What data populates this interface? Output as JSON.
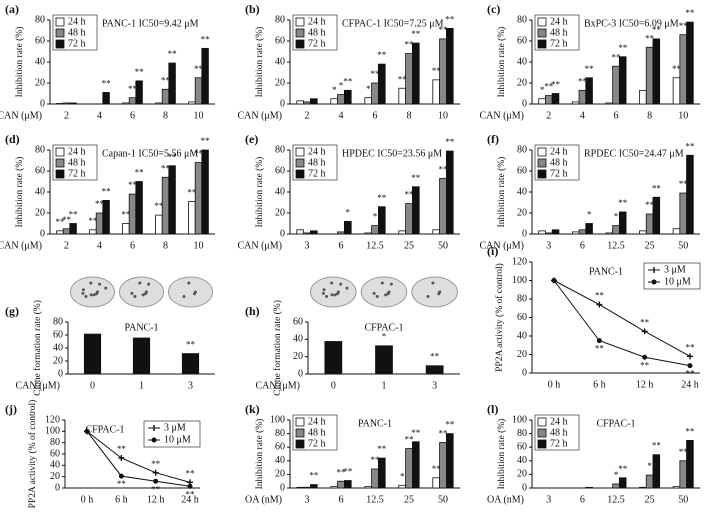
{
  "chart_data": [
    {
      "type": "bar",
      "panel": "(a)",
      "title": "PANC-1 IC50=9.42 μM",
      "xlabel": "CAN (μM)",
      "ylabel": "Inhibition rate (%)",
      "categories": [
        "2",
        "4",
        "6",
        "8",
        "10"
      ],
      "ylim": [
        0,
        80
      ],
      "yticks": [
        0,
        20,
        40,
        60,
        80
      ],
      "series": [
        {
          "name": "24 h",
          "color": "#ffffff",
          "values": [
            0.5,
            0,
            1,
            1,
            2
          ],
          "sig": [
            null,
            null,
            null,
            null,
            null
          ]
        },
        {
          "name": "48 h",
          "color": "#888888",
          "values": [
            1,
            0,
            6,
            14,
            25
          ],
          "sig": [
            null,
            null,
            "**",
            "**",
            "**"
          ]
        },
        {
          "name": "72 h",
          "color": "#111111",
          "values": [
            1,
            11,
            22,
            39,
            53
          ],
          "sig": [
            null,
            "**",
            "**",
            "**",
            "**"
          ]
        }
      ]
    },
    {
      "type": "bar",
      "panel": "(b)",
      "title": "CFPAC-1 IC50=7.25 μM",
      "xlabel": "CAN (μM)",
      "ylabel": "Inhibition rate (%)",
      "categories": [
        "2",
        "4",
        "6",
        "8",
        "10"
      ],
      "ylim": [
        0,
        80
      ],
      "yticks": [
        0,
        20,
        40,
        60,
        80
      ],
      "series": [
        {
          "name": "24 h",
          "color": "#ffffff",
          "values": [
            3,
            5,
            6,
            15,
            23
          ],
          "sig": [
            null,
            "*",
            "*",
            "**",
            "**"
          ]
        },
        {
          "name": "48 h",
          "color": "#888888",
          "values": [
            2,
            9,
            20,
            48,
            62
          ],
          "sig": [
            null,
            "*",
            "**",
            "**",
            "**"
          ]
        },
        {
          "name": "72 h",
          "color": "#111111",
          "values": [
            5,
            13,
            38,
            58,
            72
          ],
          "sig": [
            null,
            "**",
            "**",
            "**",
            "**"
          ]
        }
      ]
    },
    {
      "type": "bar",
      "panel": "(c)",
      "title": "BxPC-3 IC50=6.09 μM",
      "xlabel": "CAN (μM)",
      "ylabel": "Inhibition rate (%)",
      "categories": [
        "2",
        "4",
        "6",
        "8",
        "10"
      ],
      "ylim": [
        0,
        80
      ],
      "yticks": [
        0,
        20,
        40,
        60,
        80
      ],
      "series": [
        {
          "name": "24 h",
          "color": "#ffffff",
          "values": [
            5,
            2,
            1,
            13,
            25
          ],
          "sig": [
            "*",
            null,
            null,
            null,
            "**"
          ]
        },
        {
          "name": "48 h",
          "color": "#888888",
          "values": [
            8,
            13,
            36,
            54,
            66
          ],
          "sig": [
            "**",
            "**",
            "**",
            "**",
            "**"
          ]
        },
        {
          "name": "72 h",
          "color": "#111111",
          "values": [
            10,
            25,
            45,
            62,
            78
          ],
          "sig": [
            "**",
            "**",
            "**",
            "**",
            "**"
          ]
        }
      ]
    },
    {
      "type": "bar",
      "panel": "(d)",
      "title": "Capan-1 IC50=5.56 μM",
      "xlabel": "CAN (μM)",
      "ylabel": "Inhibition rate (%)",
      "categories": [
        "2",
        "4",
        "6",
        "8",
        "10"
      ],
      "ylim": [
        0,
        80
      ],
      "yticks": [
        0,
        20,
        40,
        60,
        80
      ],
      "series": [
        {
          "name": "24 h",
          "color": "#ffffff",
          "values": [
            3,
            4,
            10,
            18,
            31
          ],
          "sig": [
            "**",
            "**",
            "**",
            "**",
            "**"
          ]
        },
        {
          "name": "48 h",
          "color": "#888888",
          "values": [
            5,
            20,
            38,
            54,
            68
          ],
          "sig": [
            "**",
            "**",
            "**",
            "**",
            "**"
          ]
        },
        {
          "name": "72 h",
          "color": "#111111",
          "values": [
            10,
            32,
            50,
            65,
            80
          ],
          "sig": [
            "**",
            "**",
            "**",
            "**",
            "**"
          ]
        }
      ]
    },
    {
      "type": "bar",
      "panel": "(e)",
      "title": "HPDEC IC50=23.56 μM",
      "xlabel": "CAN (μM)",
      "ylabel": "Inhibition rate (%)",
      "categories": [
        "3",
        "6",
        "12.5",
        "25",
        "50"
      ],
      "ylim": [
        0,
        80
      ],
      "yticks": [
        0,
        20,
        40,
        60,
        80
      ],
      "series": [
        {
          "name": "24 h",
          "color": "#ffffff",
          "values": [
            4,
            0,
            1,
            3,
            4
          ],
          "sig": [
            null,
            null,
            null,
            null,
            null
          ]
        },
        {
          "name": "48 h",
          "color": "#888888",
          "values": [
            1,
            2,
            8,
            29,
            53
          ],
          "sig": [
            null,
            null,
            "*",
            "**",
            "**"
          ]
        },
        {
          "name": "72 h",
          "color": "#111111",
          "values": [
            3,
            12,
            26,
            45,
            79
          ],
          "sig": [
            null,
            "*",
            "**",
            "**",
            "**"
          ]
        }
      ]
    },
    {
      "type": "bar",
      "panel": "(f)",
      "title": "RPDEC IC50=24.47 μM",
      "xlabel": "CAN (μM)",
      "ylabel": "Inhibition rate (%)",
      "categories": [
        "3",
        "6",
        "12.5",
        "25",
        "50"
      ],
      "ylim": [
        0,
        80
      ],
      "yticks": [
        0,
        20,
        40,
        60,
        80
      ],
      "series": [
        {
          "name": "24 h",
          "color": "#ffffff",
          "values": [
            3,
            2,
            1,
            3,
            5
          ],
          "sig": [
            null,
            null,
            null,
            null,
            null
          ]
        },
        {
          "name": "48 h",
          "color": "#888888",
          "values": [
            1,
            4,
            8,
            19,
            39
          ],
          "sig": [
            null,
            null,
            "*",
            "**",
            "**"
          ]
        },
        {
          "name": "72 h",
          "color": "#111111",
          "values": [
            4,
            10,
            21,
            35,
            75
          ],
          "sig": [
            null,
            "*",
            "**",
            "**",
            "**"
          ]
        }
      ]
    },
    {
      "type": "single",
      "panel": "(g)",
      "title": "PANC-1",
      "xlabel": "CAN (μM)",
      "ylabel": "Clone formation rate (%)",
      "categories": [
        "0",
        "1",
        "3"
      ],
      "values": [
        62,
        56,
        32
      ],
      "color": "#111111",
      "sig": [
        null,
        null,
        "**"
      ],
      "ylim": [
        0,
        80
      ],
      "yticks": [
        0,
        20,
        40,
        60,
        80
      ]
    },
    {
      "type": "single",
      "panel": "(h)",
      "title": "CFPAC-1",
      "xlabel": "CAN (μM)",
      "ylabel": "Clone formation rate (%)",
      "categories": [
        "0",
        "1",
        "3"
      ],
      "values": [
        38,
        33,
        10
      ],
      "color": "#111111",
      "sig": [
        null,
        "*",
        "**"
      ],
      "ylim": [
        0,
        60
      ],
      "yticks": [
        0,
        20,
        40,
        60
      ]
    },
    {
      "type": "line",
      "panel": "(i)",
      "title": "PANC-1",
      "ylabel": "PP2A activity (% of control)",
      "categories": [
        "0 h",
        "6 h",
        "12 h",
        "24 h"
      ],
      "ylim": [
        0,
        120
      ],
      "yticks": [
        0,
        20,
        40,
        60,
        80,
        100,
        120
      ],
      "series": [
        {
          "name": "3 μM",
          "color": "#111111",
          "marker": "plus",
          "values": [
            100,
            74,
            45,
            18
          ],
          "sig": [
            null,
            "**",
            "**",
            "**"
          ]
        },
        {
          "name": "10 μM",
          "color": "#111111",
          "marker": "circle",
          "values": [
            100,
            35,
            17,
            8
          ],
          "sig": [
            null,
            "**",
            "**",
            "**"
          ]
        }
      ]
    },
    {
      "type": "line",
      "panel": "(j)",
      "title": "CFPAC-1",
      "ylabel": "PP2A activity (% of control)",
      "categories": [
        "0 h",
        "6 h",
        "12 h",
        "24 h"
      ],
      "ylim": [
        0,
        120
      ],
      "yticks": [
        0,
        20,
        40,
        60,
        80,
        100,
        120
      ],
      "series": [
        {
          "name": "3 μM",
          "color": "#111111",
          "marker": "plus",
          "values": [
            100,
            53,
            27,
            10
          ],
          "sig": [
            null,
            "**",
            "**",
            "**"
          ]
        },
        {
          "name": "10 μM",
          "color": "#111111",
          "marker": "circle",
          "values": [
            100,
            21,
            12,
            3
          ],
          "sig": [
            null,
            "**",
            "**",
            "**"
          ]
        }
      ]
    },
    {
      "type": "bar",
      "panel": "(k)",
      "title": "PANC-1",
      "xlabel": "OA (nM)",
      "ylabel": "Inhibition rate (%)",
      "categories": [
        "3",
        "6",
        "12.5",
        "25",
        "50"
      ],
      "ylim": [
        0,
        100
      ],
      "yticks": [
        0,
        20,
        40,
        60,
        80,
        100
      ],
      "series": [
        {
          "name": "24 h",
          "color": "#ffffff",
          "values": [
            1,
            2,
            2,
            4,
            15
          ],
          "sig": [
            null,
            null,
            null,
            "*",
            "**"
          ]
        },
        {
          "name": "48 h",
          "color": "#888888",
          "values": [
            1,
            10,
            28,
            58,
            67
          ],
          "sig": [
            null,
            "**",
            "**",
            "**",
            "**"
          ]
        },
        {
          "name": "72 h",
          "color": "#111111",
          "values": [
            5,
            11,
            44,
            68,
            80
          ],
          "sig": [
            "**",
            "**",
            "**",
            "**",
            "**"
          ]
        }
      ]
    },
    {
      "type": "bar",
      "panel": "(l)",
      "title": "CFPAC-1",
      "xlabel": "OA (nM)",
      "ylabel": "Inhibition rate (%)",
      "categories": [
        "3",
        "6",
        "12.5",
        "25",
        "50"
      ],
      "ylim": [
        0,
        100
      ],
      "yticks": [
        0,
        20,
        40,
        60,
        80,
        100
      ],
      "series": [
        {
          "name": "24 h",
          "color": "#ffffff",
          "values": [
            0,
            0,
            0,
            1,
            2
          ],
          "sig": [
            null,
            null,
            null,
            null,
            null
          ]
        },
        {
          "name": "48 h",
          "color": "#888888",
          "values": [
            0,
            0,
            6,
            19,
            40
          ],
          "sig": [
            null,
            null,
            "*",
            "*",
            "**"
          ]
        },
        {
          "name": "72 h",
          "color": "#111111",
          "values": [
            0,
            1,
            15,
            49,
            70
          ],
          "sig": [
            null,
            null,
            "**",
            "**",
            "**"
          ]
        }
      ]
    }
  ]
}
